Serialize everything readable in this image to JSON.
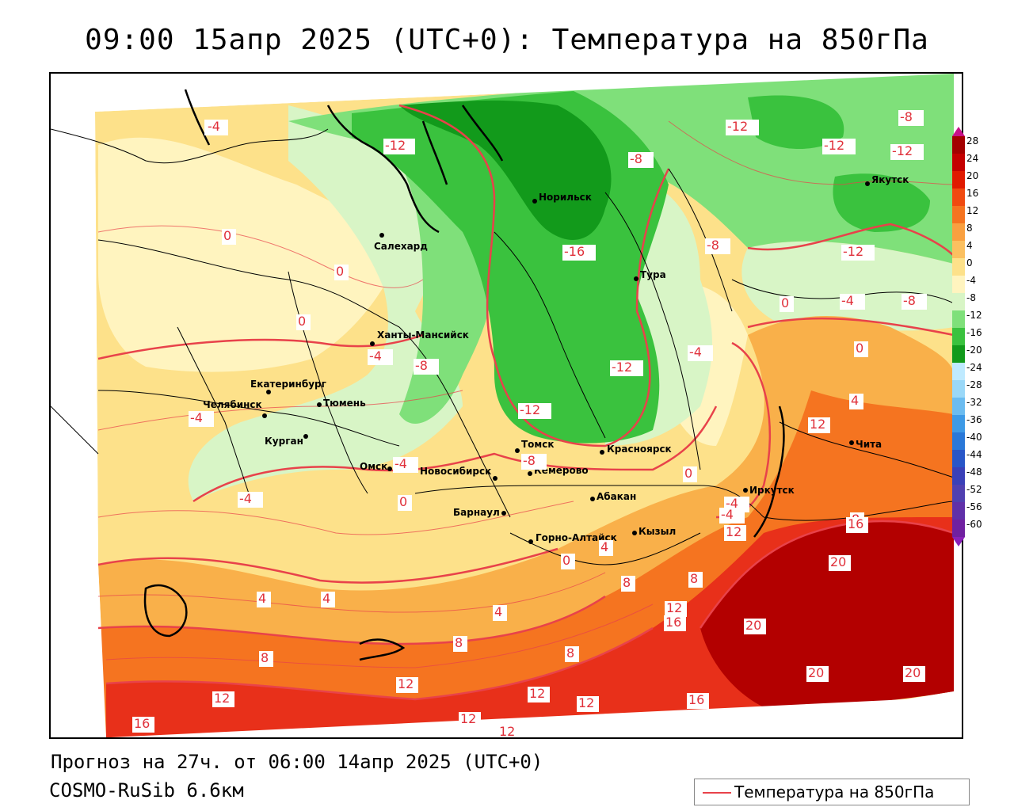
{
  "title": "09:00 15апр 2025 (UTC+0): Температура на 850гПа",
  "forecast_line": "Прогноз на 27ч. от 06:00 14апр 2025 (UTC+0)",
  "model_line": "COSMO-RuSib 6.6км",
  "legend": {
    "label": "Температура на 850гПа",
    "color": "#e8424a"
  },
  "colorbar_labels": [
    "28",
    "24",
    "20",
    "16",
    "12",
    "8",
    "4",
    "0",
    "-4",
    "-8",
    "-12",
    "-16",
    "-20",
    "-24",
    "-28",
    "-32",
    "-36",
    "-40",
    "-44",
    "-48",
    "-52",
    "-56",
    "-60"
  ],
  "colors": {
    "warm_dark": "#b30000",
    "warm": "#e8301a",
    "orange": "#f57420",
    "light_orange": "#f9b04a",
    "yellow": "#fde18a",
    "pale_yellow": "#fff4bf",
    "pale_green": "#d8f5c6",
    "light_green": "#7fe07a",
    "green": "#3ac23e",
    "dark_green": "#129a1b"
  },
  "cities": [
    {
      "name": "Норильск"
    },
    {
      "name": "Салехард"
    },
    {
      "name": "Тура"
    },
    {
      "name": "Якутск"
    },
    {
      "name": "Ханты-Мансийск"
    },
    {
      "name": "Екатеринбург"
    },
    {
      "name": "Тюмень"
    },
    {
      "name": "Челябинск"
    },
    {
      "name": "Курган"
    },
    {
      "name": "Омск"
    },
    {
      "name": "Томск"
    },
    {
      "name": "Новосибирск"
    },
    {
      "name": "Кемерово"
    },
    {
      "name": "Красноярск"
    },
    {
      "name": "Абакан"
    },
    {
      "name": "Барнаул"
    },
    {
      "name": "Горно-Алтайск"
    },
    {
      "name": "Кызыл"
    },
    {
      "name": "Иркутск"
    },
    {
      "name": "Чита"
    }
  ],
  "isotherm_labels": [
    "-4",
    "-12",
    "-8",
    "-12",
    "-12",
    "-8",
    "-12",
    "0",
    "-8",
    "-16",
    "-12",
    "0",
    "0",
    "-4",
    "-4",
    "-8",
    "-12",
    "-12",
    "-4",
    "0",
    "-8",
    "-4",
    "-4",
    "-8",
    "4",
    "0",
    "-4",
    "-4",
    "0",
    "12",
    "-4",
    "0",
    "4",
    "4",
    "8",
    "12",
    "8",
    "0",
    "16",
    "4",
    "8",
    "8",
    "12",
    "16",
    "20",
    "20",
    "20",
    "8",
    "8",
    "4",
    "12",
    "20",
    "12",
    "12",
    "12",
    "16",
    "12",
    "16",
    "12"
  ]
}
